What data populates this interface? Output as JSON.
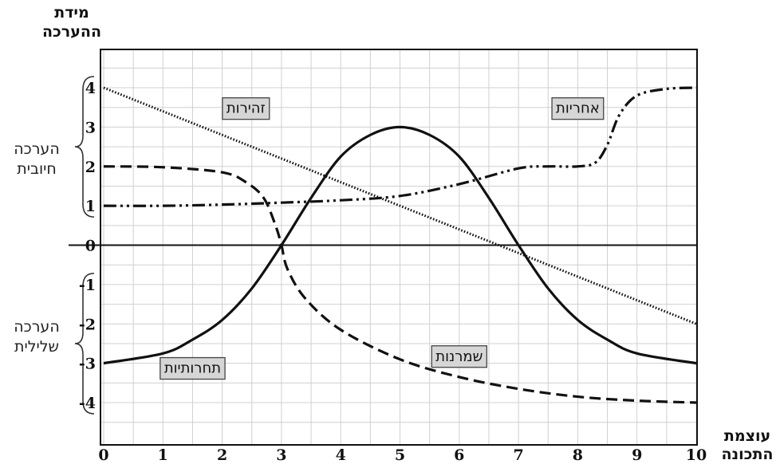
{
  "chart_data": {
    "type": "line",
    "ylabel": "מידת ההערכה",
    "xlabel": "עוצמת התכונה",
    "xlim": [
      0,
      10
    ],
    "ylim": [
      -4.5,
      4.5
    ],
    "xticks": [
      0,
      1,
      2,
      3,
      4,
      5,
      6,
      7,
      8,
      9,
      10
    ],
    "yticks": [
      4,
      3,
      2,
      1,
      0,
      -1,
      -2,
      -3,
      -4
    ],
    "grid": true,
    "y_groups": [
      {
        "label_line1": "הערכה",
        "label_line2": "חיובית",
        "range": [
          1,
          4
        ]
      },
      {
        "label_line1": "הערכה",
        "label_line2": "שלילית",
        "range": [
          -4,
          -1
        ]
      }
    ],
    "series": [
      {
        "name": "זהירות",
        "style": "dotted",
        "x": [
          0,
          10
        ],
        "y": [
          4,
          -2
        ],
        "label_at": [
          2.4,
          3.5
        ]
      },
      {
        "name": "אחריות",
        "style": "dash-dot-dot",
        "x": [
          0,
          1,
          2,
          3,
          4,
          5,
          6,
          7,
          7.5,
          8,
          8.3,
          8.5,
          8.7,
          9,
          9.5,
          10
        ],
        "y": [
          1,
          1,
          1.03,
          1.08,
          1.14,
          1.25,
          1.55,
          1.95,
          2,
          2,
          2.1,
          2.55,
          3.3,
          3.8,
          3.97,
          4
        ],
        "label_at": [
          8,
          3.5
        ]
      },
      {
        "name": "שמרנות",
        "style": "dashed",
        "x": [
          0,
          1,
          2,
          2.4,
          2.7,
          2.9,
          3,
          3.1,
          3.4,
          4,
          5,
          6,
          7,
          8,
          9,
          10
        ],
        "y": [
          2,
          1.98,
          1.85,
          1.6,
          1.2,
          0.5,
          0,
          -0.6,
          -1.35,
          -2.15,
          -2.9,
          -3.35,
          -3.65,
          -3.85,
          -3.95,
          -4
        ],
        "label_at": [
          6,
          -2.8
        ]
      },
      {
        "name": "תחרותיות",
        "style": "solid",
        "x": [
          0,
          1,
          1.5,
          2,
          2.5,
          3,
          3.5,
          4,
          4.5,
          5,
          5.5,
          6,
          6.5,
          7,
          7.5,
          8,
          8.5,
          9,
          10
        ],
        "y": [
          -3,
          -2.75,
          -2.4,
          -1.9,
          -1.1,
          0,
          1.2,
          2.25,
          2.8,
          3,
          2.8,
          2.25,
          1.2,
          0,
          -1.1,
          -1.9,
          -2.4,
          -2.75,
          -3
        ],
        "label_at": [
          1.5,
          -3.1
        ]
      }
    ]
  }
}
